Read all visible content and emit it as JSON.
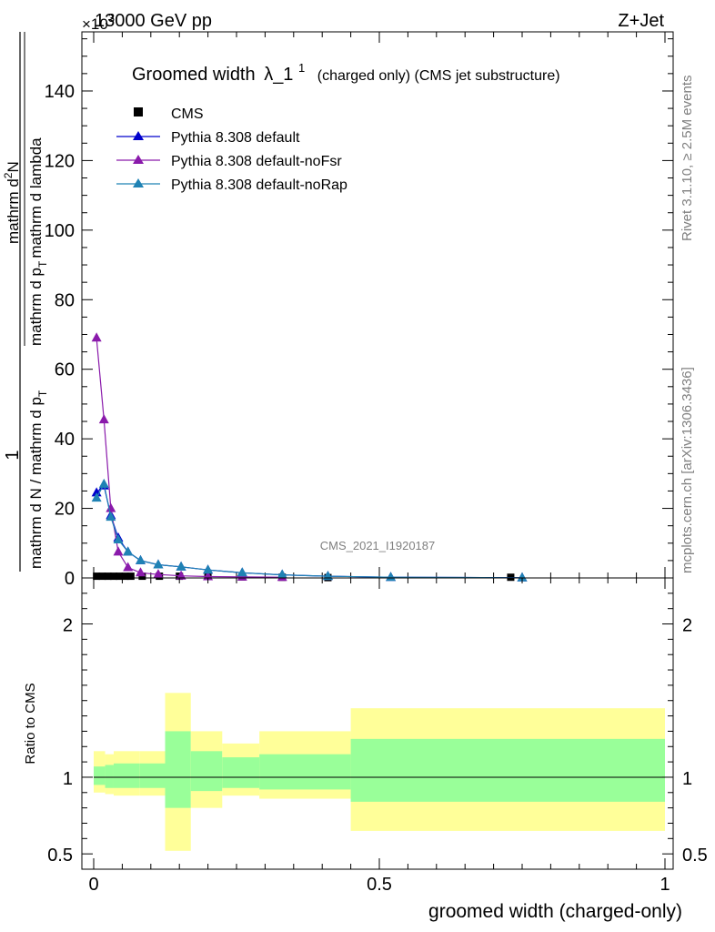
{
  "header": {
    "top_left": "13000 GeV pp",
    "top_right": "Z+Jet",
    "exponent": "×10",
    "exponent_power": "3"
  },
  "side_labels": {
    "rivet": "Rivet 3.1.10, ≥ 2.5M events",
    "mcplots": "mcplots.cern.ch [arXiv:1306.3436]"
  },
  "chart_data": [
    {
      "type": "line",
      "title": "Groomed width",
      "title_symbol": "λ_1",
      "title_sup": "1",
      "title_suffix": "(charged only) (CMS jet substructure)",
      "watermark": "CMS_2021_I1920187",
      "ylabel_numerator": "1",
      "ylabel_denominator": "mathrm d N / mathrm d p",
      "ylabel_denominator_sub": "T",
      "ylabel_frac": "mathrm d",
      "ylabel_frac_sup": "2",
      "ylabel_frac_tail": "N",
      "ylabel_frac_den": "mathrm d p",
      "ylabel_frac_den_sub": "T",
      "ylabel_frac_den_tail": "mathrm d lambda",
      "xlim": [
        -0.02,
        1.0
      ],
      "ylim": [
        0,
        157
      ],
      "yticks": [
        0,
        20,
        40,
        60,
        80,
        100,
        120,
        140
      ],
      "grid": false,
      "legend_position": "top-left",
      "series": [
        {
          "name": "CMS",
          "marker": "square",
          "color": "#000000",
          "x": [
            0.005,
            0.015,
            0.025,
            0.035,
            0.045,
            0.055,
            0.065,
            0.085,
            0.115,
            0.15,
            0.2,
            0.26,
            0.33,
            0.41,
            0.73
          ],
          "y": [
            0.5,
            0.5,
            0.5,
            0.5,
            0.5,
            0.5,
            0.5,
            0.5,
            0.5,
            0.5,
            0.4,
            0.3,
            0.2,
            0.1,
            0.2
          ]
        },
        {
          "name": "Pythia 8.308 default",
          "marker": "triangle",
          "color": "#0000cc",
          "x": [
            0.005,
            0.018,
            0.03,
            0.043,
            0.06,
            0.082,
            0.113,
            0.153,
            0.2,
            0.26,
            0.33,
            0.41,
            0.52,
            0.75
          ],
          "y": [
            24.5,
            26.5,
            18,
            11.5,
            7.5,
            5,
            3.8,
            3.2,
            2.3,
            1.5,
            0.9,
            0.5,
            0.2,
            0.05
          ]
        },
        {
          "name": "Pythia 8.308 default-noFsr",
          "marker": "triangle",
          "color": "#8a1aab",
          "x": [
            0.005,
            0.018,
            0.03,
            0.043,
            0.06,
            0.082,
            0.113,
            0.153,
            0.2,
            0.26,
            0.33
          ],
          "y": [
            69,
            45.5,
            20,
            7.5,
            3,
            1.5,
            1,
            0.6,
            0.4,
            0.3,
            0.2
          ]
        },
        {
          "name": "Pythia 8.308 default-noRap",
          "marker": "triangle",
          "color": "#1f82b4",
          "x": [
            0.005,
            0.018,
            0.03,
            0.043,
            0.06,
            0.082,
            0.113,
            0.153,
            0.2,
            0.26,
            0.33,
            0.41,
            0.52,
            0.75
          ],
          "y": [
            23,
            27,
            17.5,
            11,
            7.5,
            5,
            3.8,
            3.2,
            2.3,
            1.5,
            0.9,
            0.5,
            0.2,
            0.05
          ]
        }
      ]
    },
    {
      "type": "bar",
      "ylabel": "Ratio to CMS",
      "xlabel": "groomed width (charged-only)",
      "xlim": [
        -0.02,
        1.0
      ],
      "xticks": [
        0,
        0.5,
        1
      ],
      "ylim": [
        0.4,
        2.3
      ],
      "yticks": [
        0.5,
        1,
        2
      ],
      "reference_line": 1,
      "bins": [
        {
          "lo": 0.0,
          "hi": 0.02,
          "inner_lo": 0.95,
          "inner_hi": 1.07,
          "outer_lo": 0.9,
          "outer_hi": 1.17
        },
        {
          "lo": 0.02,
          "hi": 0.035,
          "inner_lo": 0.93,
          "inner_hi": 1.08,
          "outer_lo": 0.89,
          "outer_hi": 1.15
        },
        {
          "lo": 0.035,
          "hi": 0.08,
          "inner_lo": 0.93,
          "inner_hi": 1.09,
          "outer_lo": 0.88,
          "outer_hi": 1.17
        },
        {
          "lo": 0.08,
          "hi": 0.125,
          "inner_lo": 0.93,
          "inner_hi": 1.09,
          "outer_lo": 0.88,
          "outer_hi": 1.17
        },
        {
          "lo": 0.125,
          "hi": 0.17,
          "inner_lo": 0.8,
          "inner_hi": 1.3,
          "outer_lo": 0.52,
          "outer_hi": 1.55
        },
        {
          "lo": 0.17,
          "hi": 0.225,
          "inner_lo": 0.91,
          "inner_hi": 1.17,
          "outer_lo": 0.8,
          "outer_hi": 1.3
        },
        {
          "lo": 0.225,
          "hi": 0.29,
          "inner_lo": 0.93,
          "inner_hi": 1.13,
          "outer_lo": 0.88,
          "outer_hi": 1.22
        },
        {
          "lo": 0.29,
          "hi": 0.45,
          "inner_lo": 0.92,
          "inner_hi": 1.15,
          "outer_lo": 0.86,
          "outer_hi": 1.3
        },
        {
          "lo": 0.45,
          "hi": 1.0,
          "inner_lo": 0.84,
          "inner_hi": 1.25,
          "outer_lo": 0.65,
          "outer_hi": 1.45
        }
      ],
      "colors": {
        "inner": "#99ff99",
        "outer": "#ffff99"
      }
    }
  ]
}
